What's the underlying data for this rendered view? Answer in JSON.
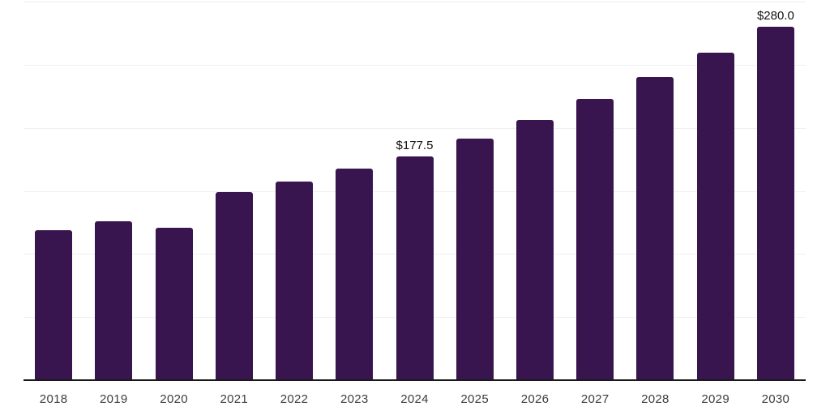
{
  "chart_data": {
    "type": "bar",
    "title": "",
    "xlabel": "",
    "ylabel": "",
    "categories": [
      "2018",
      "2019",
      "2020",
      "2021",
      "2022",
      "2023",
      "2024",
      "2025",
      "2026",
      "2027",
      "2028",
      "2029",
      "2030"
    ],
    "values": [
      119.1,
      125.9,
      121.0,
      149.2,
      157.4,
      167.5,
      177.5,
      191.5,
      206.6,
      223.0,
      240.6,
      259.6,
      280.0
    ],
    "point_labels": [
      "",
      "",
      "",
      "",
      "",
      "",
      "$177.5",
      "",
      "",
      "",
      "",
      "",
      "$280.0"
    ],
    "ylim": [
      0,
      300
    ],
    "grid_interval": 50,
    "grid": "horizontal",
    "legend": "none",
    "colors": {
      "bar": "#38154f",
      "gridline": "#efefef",
      "axis_line": "#1a1a1a",
      "tick_label": "#3d3d3d",
      "data_label": "#111111"
    }
  }
}
